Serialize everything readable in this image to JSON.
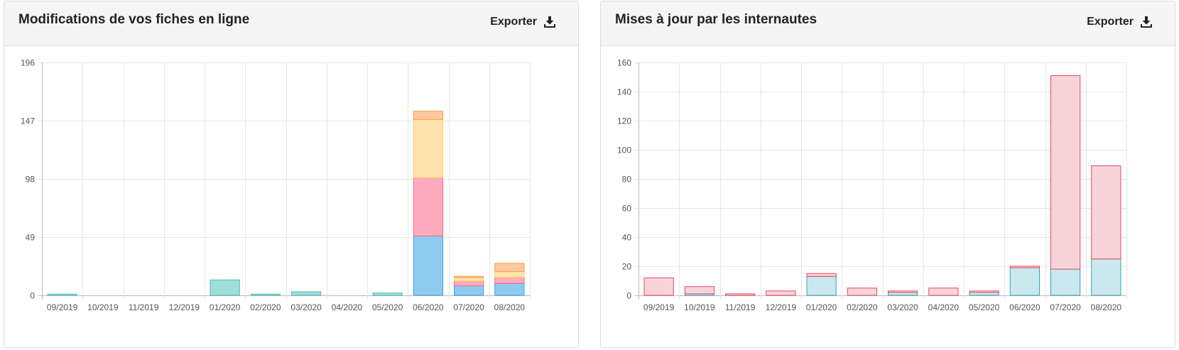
{
  "panels": [
    {
      "title": "Modifications de vos fiches en ligne",
      "export_label": "Exporter",
      "export_icon": "download-icon"
    },
    {
      "title": "Mises à jour par les internautes",
      "export_label": "Exporter",
      "export_icon": "download-icon"
    }
  ],
  "chart_data": [
    {
      "type": "bar",
      "stacked": true,
      "categories": [
        "09/2019",
        "10/2019",
        "11/2019",
        "12/2019",
        "01/2020",
        "02/2020",
        "03/2020",
        "04/2020",
        "05/2020",
        "06/2020",
        "07/2020",
        "08/2020"
      ],
      "yticks": [
        0,
        49,
        98,
        147,
        196
      ],
      "ylim": [
        0,
        196
      ],
      "grid": true,
      "series": [
        {
          "color": "#4dbdb3",
          "fill": "#9fded9",
          "values": [
            1,
            0,
            0,
            0,
            13,
            1,
            3,
            0,
            2,
            0,
            0,
            0
          ]
        },
        {
          "color": "#36a2eb",
          "fill": "#8fcbef",
          "values": [
            0,
            0,
            0,
            0,
            0,
            0,
            0,
            0,
            0,
            50,
            8,
            10
          ]
        },
        {
          "color": "#ff6384",
          "fill": "#ffabbf",
          "values": [
            0,
            0,
            0,
            0,
            0,
            0,
            0,
            0,
            0,
            49,
            4,
            5
          ]
        },
        {
          "color": "#ffcd56",
          "fill": "#ffe3ad",
          "values": [
            0,
            0,
            0,
            0,
            0,
            0,
            0,
            0,
            0,
            49,
            3,
            5
          ]
        },
        {
          "color": "#ff9f40",
          "fill": "#ffc8a0",
          "values": [
            0,
            0,
            0,
            0,
            0,
            0,
            0,
            0,
            0,
            7,
            1,
            7
          ]
        }
      ]
    },
    {
      "type": "bar",
      "stacked": true,
      "categories": [
        "09/2019",
        "10/2019",
        "11/2019",
        "12/2019",
        "01/2020",
        "02/2020",
        "03/2020",
        "04/2020",
        "05/2020",
        "06/2020",
        "07/2020",
        "08/2020"
      ],
      "yticks": [
        0,
        20,
        40,
        60,
        80,
        100,
        120,
        140,
        160
      ],
      "ylim": [
        0,
        160
      ],
      "grid": true,
      "series": [
        {
          "color": "#36a2b5",
          "fill": "#cbe8ef",
          "values": [
            0,
            1,
            0,
            0,
            13,
            0,
            2,
            0,
            2,
            19,
            18,
            25
          ]
        },
        {
          "color": "#e8475f",
          "fill": "#f8d4d9",
          "values": [
            12,
            5,
            1,
            3,
            2,
            5,
            1,
            5,
            1,
            1,
            133,
            64
          ]
        }
      ]
    }
  ]
}
